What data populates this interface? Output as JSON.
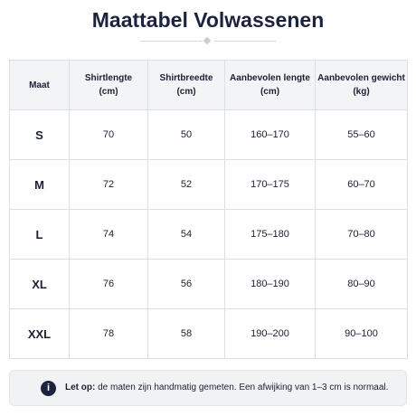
{
  "header": {
    "title": "Maattabel Volwassenen"
  },
  "table": {
    "columns": [
      {
        "label": "Maat",
        "unit": null
      },
      {
        "label": "Shirtlengte",
        "unit": "(cm)"
      },
      {
        "label": "Shirtbreedte",
        "unit": "(cm)"
      },
      {
        "label": "Aanbevolen lengte",
        "unit": "(cm)"
      },
      {
        "label": "Aanbevolen gewicht",
        "unit": "(kg)"
      }
    ],
    "rows": [
      [
        "S",
        "70",
        "50",
        "160–170",
        "55–60"
      ],
      [
        "M",
        "72",
        "52",
        "170–175",
        "60–70"
      ],
      [
        "L",
        "74",
        "54",
        "175–180",
        "70–80"
      ],
      [
        "XL",
        "76",
        "56",
        "180–190",
        "80–90"
      ],
      [
        "XXL",
        "78",
        "58",
        "190–200",
        "90–100"
      ]
    ]
  },
  "note": {
    "icon": "i",
    "label": "Let op:",
    "text": "de maten zijn handmatig gemeten. Een afwijking van 1–3 cm is normaal."
  }
}
